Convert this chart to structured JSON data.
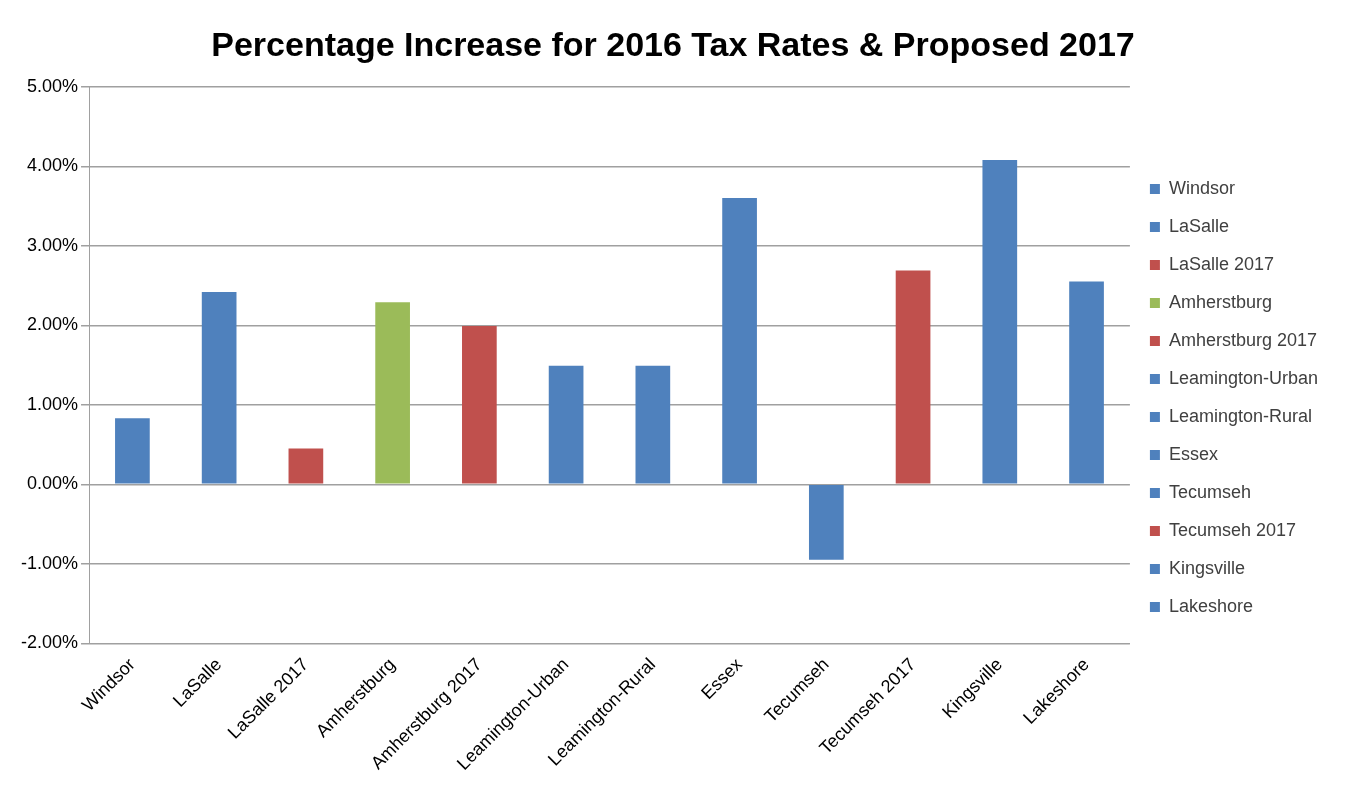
{
  "chart_data": {
    "type": "bar",
    "title": "Percentage Increase for 2016 Tax Rates & Proposed 2017",
    "categories": [
      "Windsor",
      "LaSalle",
      "LaSalle 2017",
      "Amherstburg",
      "Amherstburg 2017",
      "Leamington-Urban",
      "Leamington-Rural",
      "Essex",
      "Tecumseh",
      "Tecumseh 2017",
      "Kingsville",
      "Lakeshore"
    ],
    "series": [
      {
        "name": "Windsor",
        "color": "#4f81bd",
        "values": [
          0.83,
          null,
          null,
          null,
          null,
          null,
          null,
          null,
          null,
          null,
          null,
          null
        ]
      },
      {
        "name": "LaSalle",
        "color": "#4f81bd",
        "values": [
          null,
          2.42,
          null,
          null,
          null,
          null,
          null,
          null,
          null,
          null,
          null,
          null
        ]
      },
      {
        "name": "LaSalle 2017",
        "color": "#c0504d",
        "values": [
          null,
          null,
          0.45,
          null,
          null,
          null,
          null,
          null,
          null,
          null,
          null,
          null
        ]
      },
      {
        "name": "Amherstburg",
        "color": "#9bbb59",
        "values": [
          null,
          null,
          null,
          2.29,
          null,
          null,
          null,
          null,
          null,
          null,
          null,
          null
        ]
      },
      {
        "name": "Amherstburg 2017",
        "color": "#c0504d",
        "values": [
          null,
          null,
          null,
          null,
          1.99,
          null,
          null,
          null,
          null,
          null,
          null,
          null
        ]
      },
      {
        "name": "Leamington-Urban",
        "color": "#4f81bd",
        "values": [
          null,
          null,
          null,
          null,
          null,
          1.49,
          null,
          null,
          null,
          null,
          null,
          null
        ]
      },
      {
        "name": "Leamington-Rural",
        "color": "#4f81bd",
        "values": [
          null,
          null,
          null,
          null,
          null,
          null,
          1.49,
          null,
          null,
          null,
          null,
          null
        ]
      },
      {
        "name": "Essex",
        "color": "#4f81bd",
        "values": [
          null,
          null,
          null,
          null,
          null,
          null,
          null,
          3.6,
          null,
          null,
          null,
          null
        ]
      },
      {
        "name": "Tecumseh",
        "color": "#4f81bd",
        "values": [
          null,
          null,
          null,
          null,
          null,
          null,
          null,
          null,
          -0.95,
          null,
          null,
          null
        ]
      },
      {
        "name": "Tecumseh 2017",
        "color": "#c0504d",
        "values": [
          null,
          null,
          null,
          null,
          null,
          null,
          null,
          null,
          null,
          2.69,
          null,
          null
        ]
      },
      {
        "name": "Kingsville",
        "color": "#4f81bd",
        "values": [
          null,
          null,
          null,
          null,
          null,
          null,
          null,
          null,
          null,
          null,
          4.08,
          null
        ]
      },
      {
        "name": "Lakeshore",
        "color": "#4f81bd",
        "values": [
          null,
          null,
          null,
          null,
          null,
          null,
          null,
          null,
          null,
          null,
          null,
          2.55
        ]
      }
    ],
    "ylim": [
      -2,
      5
    ],
    "yticks": [
      {
        "value": -2,
        "label": "-2.00%"
      },
      {
        "value": -1,
        "label": "-1.00%"
      },
      {
        "value": 0,
        "label": "0.00%"
      },
      {
        "value": 1,
        "label": "1.00%"
      },
      {
        "value": 2,
        "label": "2.00%"
      },
      {
        "value": 3,
        "label": "3.00%"
      },
      {
        "value": 4,
        "label": "4.00%"
      },
      {
        "value": 5,
        "label": "5.00%"
      }
    ],
    "grid": "y",
    "legend": "right"
  }
}
